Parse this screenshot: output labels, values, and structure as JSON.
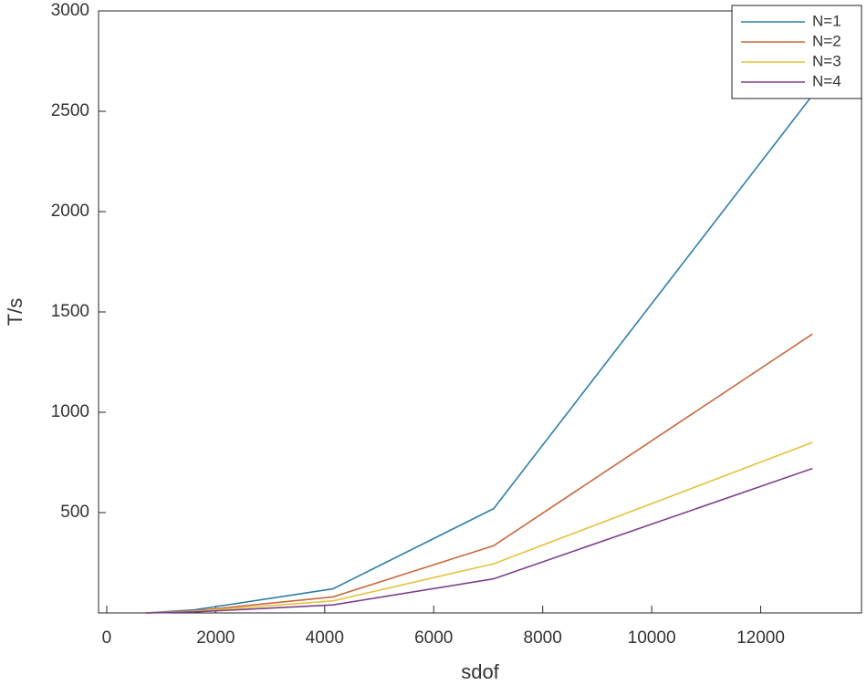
{
  "chart_data": {
    "type": "line",
    "x_label": "sdof",
    "y_label": "T/s",
    "x": [
      720,
      1600,
      4150,
      7100,
      12950
    ],
    "series": [
      {
        "name": "N=1",
        "color": "#2f7ea8",
        "values": [
          0,
          15,
          120,
          520,
          2580
        ]
      },
      {
        "name": "N=2",
        "color": "#c8683e",
        "values": [
          0,
          10,
          80,
          335,
          1390
        ]
      },
      {
        "name": "N=3",
        "color": "#e5c23e",
        "values": [
          0,
          8,
          60,
          245,
          850
        ]
      },
      {
        "name": "N=4",
        "color": "#7d3f8a",
        "values": [
          0,
          5,
          40,
          170,
          720
        ]
      }
    ],
    "xlim": [
      -150,
      13850
    ],
    "ylim": [
      0,
      3000
    ],
    "xticks": [
      0,
      2000,
      4000,
      6000,
      8000,
      10000,
      12000
    ],
    "yticks": [
      500,
      1000,
      1500,
      2000,
      2500,
      3000
    ],
    "legend": "upper-right"
  }
}
